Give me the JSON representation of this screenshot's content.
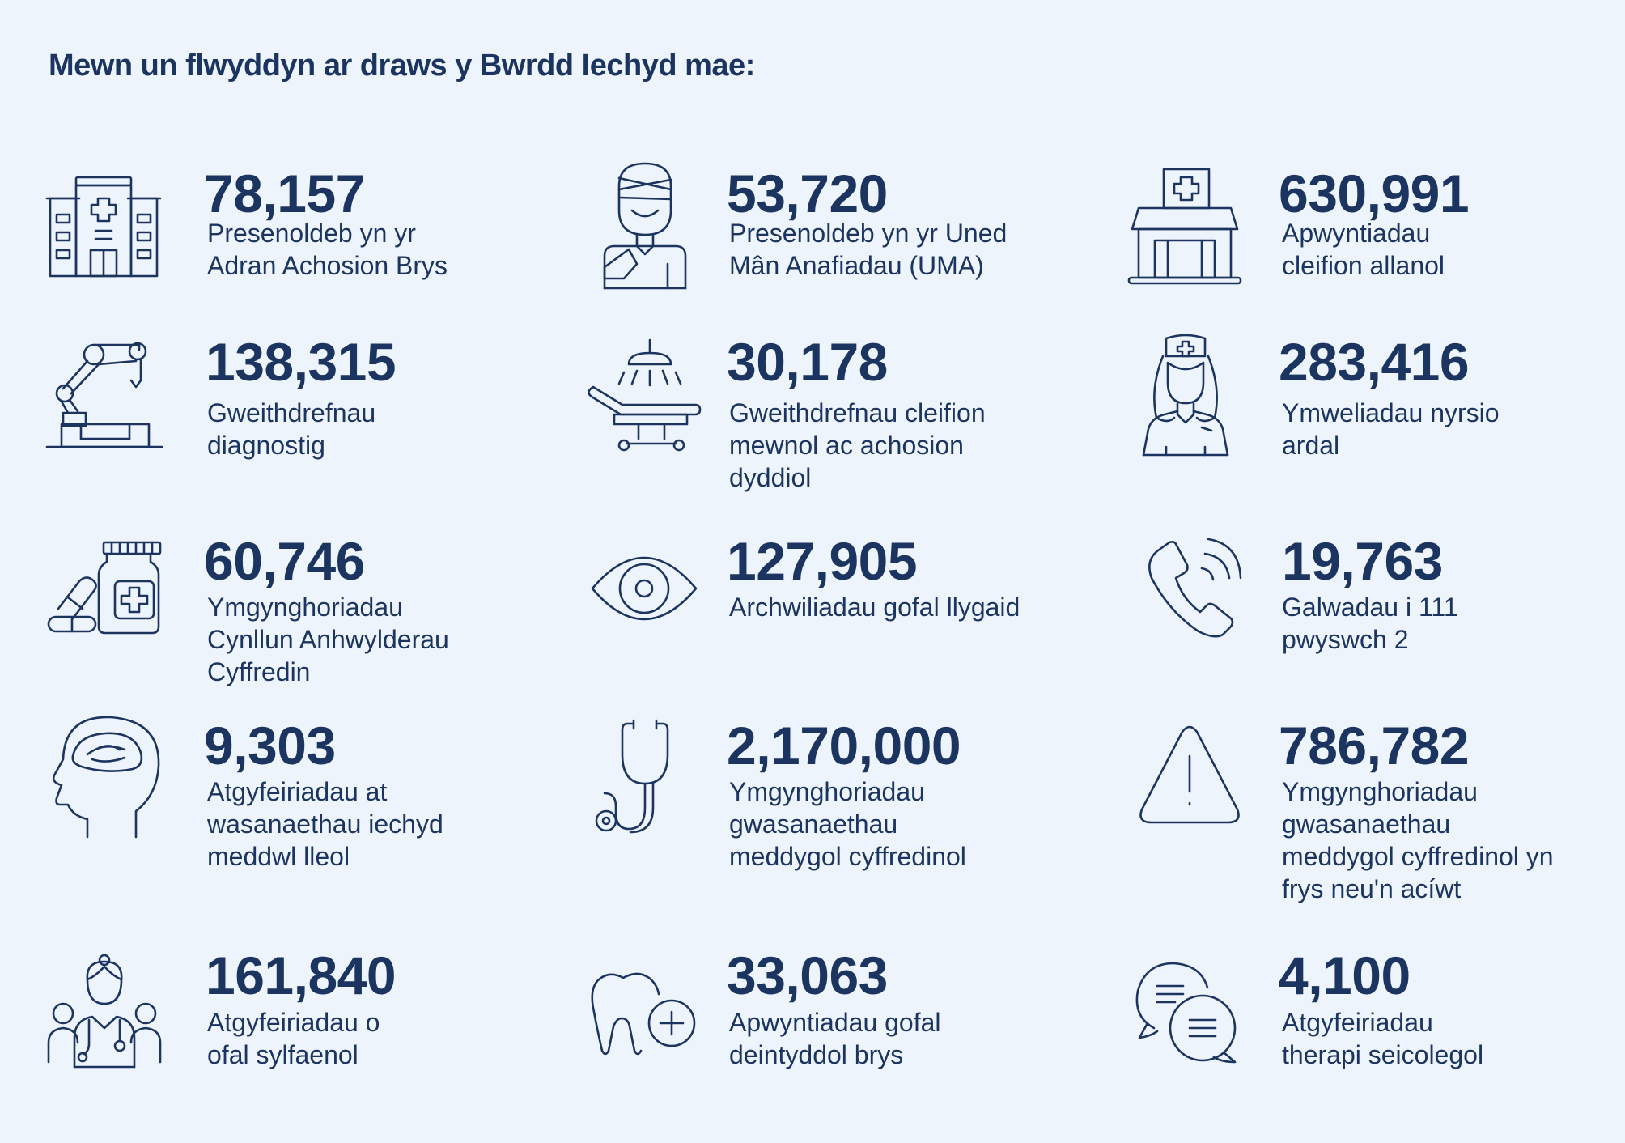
{
  "title": "Mewn un flwyddyn ar draws y Bwrdd Iechyd mae:",
  "stats": [
    {
      "value": "78,157",
      "label": [
        "Presenoldeb yn yr",
        "Adran Achosion Brys"
      ],
      "icon": "hospital-icon"
    },
    {
      "value": "53,720",
      "label": [
        "Presenoldeb yn yr Uned",
        "Mân Anafiadau (UMA)"
      ],
      "icon": "injured-person-icon"
    },
    {
      "value": "630,991",
      "label": [
        "Apwyntiadau",
        "cleifion allanol"
      ],
      "icon": "clinic-building-icon"
    },
    {
      "value": "138,315",
      "label": [
        "Gweithdrefnau",
        "diagnostig"
      ],
      "icon": "robotic-arm-icon"
    },
    {
      "value": "30,178",
      "label": [
        "Gweithdrefnau cleifion",
        "mewnol ac achosion",
        "dyddiol"
      ],
      "icon": "operating-table-icon"
    },
    {
      "value": "283,416",
      "label": [
        "Ymweliadau nyrsio",
        "ardal"
      ],
      "icon": "nurse-icon"
    },
    {
      "value": "60,746",
      "label": [
        "Ymgynghoriadau",
        "Cynllun Anhwylderau",
        "Cyffredin"
      ],
      "icon": "medicine-bottle-icon"
    },
    {
      "value": "127,905",
      "label": [
        "Archwiliadau gofal llygaid"
      ],
      "icon": "eye-icon"
    },
    {
      "value": "19,763",
      "label": [
        "Galwadau i 111",
        "pwyswch 2"
      ],
      "icon": "phone-icon"
    },
    {
      "value": "9,303",
      "label": [
        "Atgyfeiriadau at",
        "wasanaethau iechyd",
        "meddwl lleol"
      ],
      "icon": "head-brain-icon"
    },
    {
      "value": "2,170,000",
      "label": [
        "Ymgynghoriadau",
        "gwasanaethau",
        "meddygol cyffredinol"
      ],
      "icon": "stethoscope-icon"
    },
    {
      "value": "786,782",
      "label": [
        "Ymgynghoriadau",
        "gwasanaethau",
        "meddygol cyffredinol yn",
        "frys neu'n acíwt"
      ],
      "icon": "warning-triangle-icon"
    },
    {
      "value": "161,840",
      "label": [
        "Atgyfeiriadau o",
        "ofal sylfaenol"
      ],
      "icon": "care-team-icon"
    },
    {
      "value": "33,063",
      "label": [
        "Apwyntiadau gofal",
        "deintyddol brys"
      ],
      "icon": "tooth-plus-icon"
    },
    {
      "value": "4,100",
      "label": [
        "Atgyfeiriadau",
        "therapi seicolegol"
      ],
      "icon": "speech-bubbles-icon"
    }
  ]
}
